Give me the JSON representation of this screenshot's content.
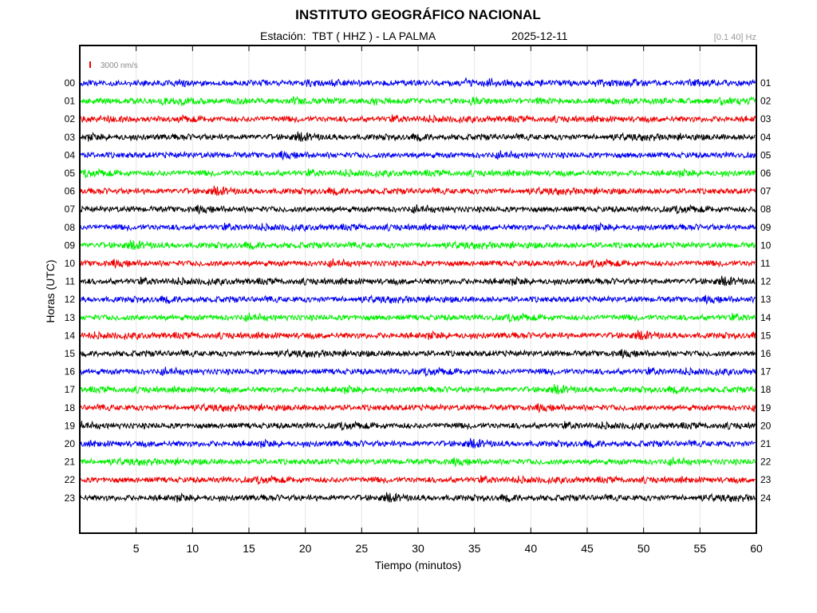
{
  "header": {
    "title": "INSTITUTO GEOGRÁFICO NACIONAL",
    "station_label": "Estación:  TBT ( HHZ ) - LA PALMA",
    "date": "2025-12-11",
    "filter_band": "[0.1 40] Hz"
  },
  "chart_data": {
    "type": "line",
    "title": "INSTITUTO GEOGRÁFICO NACIONAL",
    "xlabel": "Tiempo (minutos)",
    "ylabel": "Horas (UTC)",
    "xlim": [
      0,
      60
    ],
    "x_ticks": [
      5,
      10,
      15,
      20,
      25,
      30,
      35,
      40,
      45,
      50,
      55,
      60
    ],
    "left_hour_labels": [
      "00",
      "01",
      "02",
      "03",
      "04",
      "05",
      "06",
      "07",
      "08",
      "09",
      "10",
      "11",
      "12",
      "13",
      "14",
      "15",
      "16",
      "17",
      "18",
      "19",
      "20",
      "21",
      "22",
      "23"
    ],
    "right_hour_labels": [
      "01",
      "02",
      "03",
      "04",
      "05",
      "06",
      "07",
      "08",
      "09",
      "10",
      "11",
      "12",
      "13",
      "14",
      "15",
      "16",
      "17",
      "18",
      "19",
      "20",
      "21",
      "22",
      "23",
      "24"
    ],
    "trace_colors": [
      "#0000ee",
      "#00ee00",
      "#ee0000",
      "#000000"
    ],
    "scale_bar": {
      "label": "3000 nm/s",
      "color": "#ee0000"
    },
    "grid": true,
    "legend": "none"
  }
}
